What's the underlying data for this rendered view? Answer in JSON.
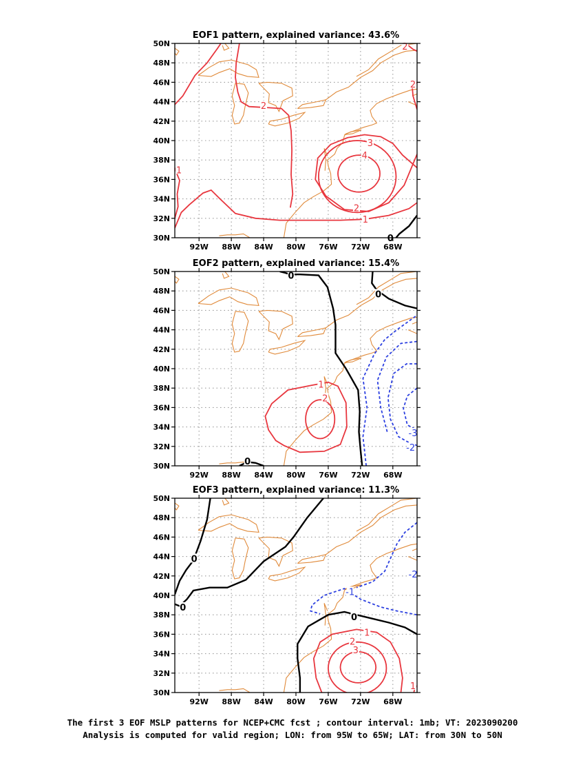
{
  "panels": [
    {
      "title": "EOF1 pattern, explained variance: 43.6%"
    },
    {
      "title": "EOF2 pattern, explained variance: 15.4%"
    },
    {
      "title": "EOF3 pattern, explained variance: 11.3%"
    }
  ],
  "axes": {
    "lat_labels": [
      "30N",
      "32N",
      "34N",
      "36N",
      "38N",
      "40N",
      "42N",
      "44N",
      "46N",
      "48N",
      "50N"
    ],
    "lon_labels": [
      "92W",
      "88W",
      "84W",
      "80W",
      "76W",
      "72W",
      "68W"
    ],
    "lon_ticks": [
      -92,
      -88,
      -84,
      -80,
      -76,
      -72,
      -68
    ],
    "lat_ticks": [
      30,
      32,
      34,
      36,
      38,
      40,
      42,
      44,
      46,
      48,
      50
    ],
    "lon_range": [
      -95,
      -65
    ],
    "lat_range": [
      30,
      50
    ]
  },
  "colors": {
    "positive": "#e8363e",
    "negative": "#2b3fe0",
    "zero": "#000000",
    "coast": "#e08a3a",
    "grid": "#9a9a9a"
  },
  "footer": {
    "line1": "The first 3 EOF MSLP patterns for NCEP+CMC fcst ; contour interval: 1mb; VT: 2023090200",
    "line2": "Analysis is computed for valid region; LON: from 95W to 65W; LAT: from 30N to 50N"
  }
}
